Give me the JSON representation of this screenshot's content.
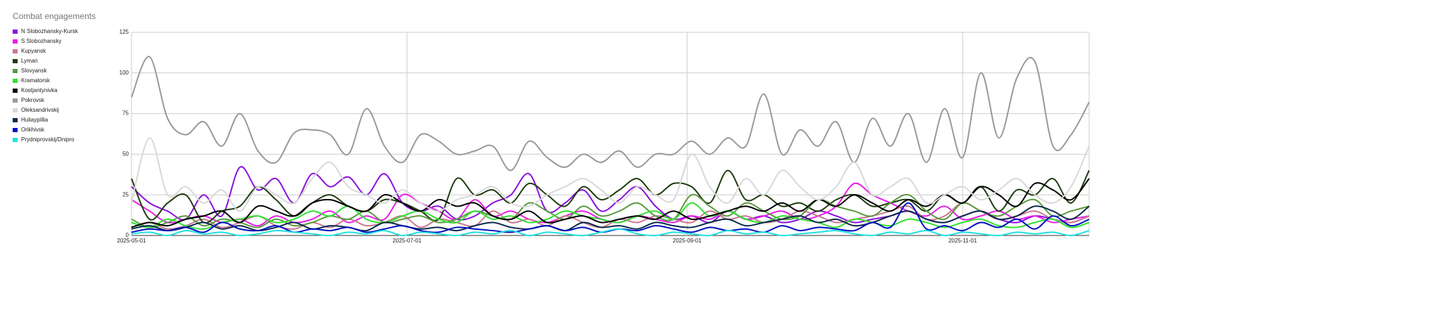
{
  "chart_data": {
    "type": "line",
    "title": "Combat engagements",
    "x": [
      "2025-05-01",
      "2025-05-05",
      "2025-05-09",
      "2025-05-13",
      "2025-05-17",
      "2025-05-21",
      "2025-05-25",
      "2025-05-29",
      "2025-06-02",
      "2025-06-06",
      "2025-06-10",
      "2025-06-14",
      "2025-06-18",
      "2025-06-22",
      "2025-06-26",
      "2025-06-30",
      "2025-07-04",
      "2025-07-08",
      "2025-07-12",
      "2025-07-16",
      "2025-07-20",
      "2025-07-24",
      "2025-07-28",
      "2025-08-01",
      "2025-08-05",
      "2025-08-09",
      "2025-08-13",
      "2025-08-17",
      "2025-08-21",
      "2025-08-25",
      "2025-08-29",
      "2025-09-02",
      "2025-09-06",
      "2025-09-10",
      "2025-09-14",
      "2025-09-18",
      "2025-09-22",
      "2025-09-26",
      "2025-09-30",
      "2025-10-04",
      "2025-10-08",
      "2025-10-12",
      "2025-10-16",
      "2025-10-20",
      "2025-10-24",
      "2025-10-28",
      "2025-11-01",
      "2025-11-05",
      "2025-11-09",
      "2025-11-13",
      "2025-11-17",
      "2025-11-21",
      "2025-11-25",
      "2025-11-29"
    ],
    "xlim": [
      "2025-05-01",
      "2025-11-29"
    ],
    "xticks": [
      "2025-05-01",
      "2025-07-01",
      "2025-09-01",
      "2025-11-01"
    ],
    "ylim": [
      0,
      125
    ],
    "yticks": [
      0,
      25,
      50,
      75,
      100,
      125
    ],
    "grid": true,
    "series": [
      {
        "name": "N Slobozhansky-Kursk",
        "color": "#8a10e0",
        "values": [
          30,
          20,
          15,
          10,
          25,
          12,
          42,
          28,
          35,
          20,
          38,
          30,
          36,
          25,
          38,
          20,
          15,
          18,
          10,
          12,
          20,
          25,
          38,
          15,
          20,
          28,
          15,
          22,
          30,
          18,
          10,
          12,
          8,
          15,
          10,
          12,
          8,
          10,
          15,
          12,
          8,
          10,
          12,
          15,
          10,
          8,
          12,
          15,
          10,
          8,
          12,
          10,
          8,
          12
        ]
      },
      {
        "name": "S Slobozhansky",
        "color": "#e81ee8",
        "values": [
          22,
          15,
          8,
          10,
          12,
          8,
          10,
          6,
          12,
          8,
          10,
          15,
          8,
          12,
          10,
          25,
          20,
          15,
          10,
          22,
          12,
          15,
          10,
          8,
          12,
          15,
          10,
          8,
          12,
          10,
          8,
          12,
          10,
          15,
          10,
          12,
          15,
          10,
          12,
          18,
          32,
          25,
          20,
          15,
          12,
          18,
          10,
          12,
          15,
          10,
          12,
          8,
          10,
          12
        ]
      },
      {
        "name": "Kupyansk",
        "color": "#c87890",
        "values": [
          5,
          8,
          4,
          6,
          10,
          5,
          8,
          12,
          6,
          4,
          8,
          5,
          10,
          6,
          8,
          12,
          5,
          10,
          8,
          6,
          15,
          8,
          10,
          6,
          12,
          8,
          5,
          10,
          8,
          12,
          10,
          8,
          15,
          10,
          12,
          8,
          10,
          15,
          12,
          8,
          10,
          12,
          15,
          18,
          10,
          12,
          20,
          15,
          10,
          12,
          15,
          10,
          8,
          12
        ]
      },
      {
        "name": "Lyman",
        "color": "#1e3c10",
        "values": [
          35,
          10,
          20,
          25,
          8,
          15,
          18,
          30,
          22,
          12,
          20,
          25,
          18,
          15,
          22,
          20,
          15,
          10,
          35,
          25,
          28,
          20,
          32,
          25,
          18,
          30,
          22,
          28,
          35,
          25,
          32,
          30,
          20,
          40,
          22,
          25,
          18,
          20,
          15,
          22,
          25,
          18,
          20,
          22,
          15,
          25,
          20,
          30,
          15,
          28,
          25,
          35,
          20,
          40
        ]
      },
      {
        "name": "Slovyansk",
        "color": "#5a9a40",
        "values": [
          10,
          5,
          8,
          12,
          6,
          10,
          8,
          5,
          10,
          6,
          8,
          12,
          10,
          15,
          8,
          10,
          12,
          8,
          10,
          15,
          12,
          10,
          20,
          15,
          10,
          18,
          12,
          15,
          20,
          12,
          10,
          25,
          18,
          12,
          20,
          15,
          10,
          12,
          22,
          18,
          15,
          12,
          20,
          25,
          15,
          10,
          20,
          15,
          12,
          18,
          22,
          12,
          15,
          18
        ]
      },
      {
        "name": "Kramatorsk",
        "color": "#30e030",
        "values": [
          8,
          5,
          10,
          6,
          4,
          8,
          10,
          12,
          8,
          10,
          15,
          12,
          18,
          10,
          8,
          12,
          15,
          10,
          8,
          15,
          10,
          12,
          8,
          10,
          15,
          12,
          10,
          8,
          12,
          15,
          10,
          20,
          12,
          15,
          10,
          8,
          12,
          10,
          8,
          5,
          10,
          8,
          6,
          10,
          8,
          5,
          8,
          10,
          6,
          5,
          8,
          10,
          5,
          8
        ]
      },
      {
        "name": "Kostjantynivka",
        "color": "#000000",
        "values": [
          5,
          8,
          6,
          10,
          12,
          15,
          8,
          18,
          15,
          12,
          20,
          22,
          18,
          15,
          25,
          20,
          15,
          22,
          18,
          20,
          12,
          10,
          15,
          8,
          10,
          12,
          8,
          10,
          12,
          10,
          15,
          10,
          12,
          15,
          18,
          15,
          20,
          15,
          22,
          18,
          25,
          20,
          15,
          22,
          18,
          25,
          20,
          30,
          25,
          18,
          32,
          28,
          22,
          35
        ]
      },
      {
        "name": "Pokrovsk",
        "color": "#999999",
        "values": [
          85,
          110,
          72,
          62,
          70,
          55,
          75,
          52,
          45,
          63,
          65,
          62,
          50,
          78,
          55,
          45,
          62,
          58,
          50,
          52,
          55,
          40,
          58,
          48,
          42,
          50,
          45,
          52,
          42,
          50,
          50,
          58,
          50,
          60,
          55,
          87,
          50,
          65,
          55,
          70,
          45,
          72,
          55,
          75,
          45,
          78,
          48,
          100,
          60,
          97,
          107,
          55,
          62,
          82
        ]
      },
      {
        "name": "Oleksandrivskij",
        "color": "#d8d8d8",
        "values": [
          20,
          60,
          25,
          30,
          20,
          28,
          15,
          30,
          25,
          20,
          35,
          45,
          30,
          25,
          20,
          28,
          20,
          15,
          22,
          25,
          30,
          20,
          18,
          25,
          30,
          35,
          28,
          20,
          30,
          25,
          22,
          50,
          30,
          20,
          35,
          25,
          40,
          30,
          22,
          30,
          45,
          25,
          30,
          35,
          20,
          25,
          30,
          22,
          28,
          35,
          25,
          20,
          30,
          55
        ]
      },
      {
        "name": "Huliaypillia",
        "color": "#0a2a4a",
        "values": [
          4,
          6,
          3,
          5,
          8,
          4,
          6,
          3,
          5,
          8,
          4,
          6,
          5,
          3,
          8,
          6,
          4,
          5,
          3,
          6,
          8,
          5,
          4,
          6,
          3,
          8,
          5,
          6,
          4,
          8,
          6,
          5,
          8,
          10,
          6,
          8,
          10,
          12,
          8,
          10,
          6,
          8,
          12,
          15,
          10,
          8,
          12,
          15,
          10,
          12,
          18,
          15,
          10,
          18
        ]
      },
      {
        "name": "Orikhivsk",
        "color": "#0010c0",
        "values": [
          2,
          4,
          3,
          5,
          2,
          8,
          4,
          3,
          6,
          2,
          4,
          3,
          5,
          2,
          4,
          6,
          3,
          2,
          5,
          4,
          3,
          2,
          4,
          6,
          3,
          5,
          2,
          4,
          3,
          6,
          4,
          2,
          5,
          3,
          4,
          2,
          6,
          3,
          5,
          4,
          3,
          8,
          5,
          20,
          4,
          6,
          3,
          8,
          5,
          10,
          4,
          12,
          6,
          10
        ]
      },
      {
        "name": "Prydniprovskij/Dnipro",
        "color": "#20e0e0",
        "values": [
          1,
          2,
          0,
          3,
          1,
          2,
          0,
          1,
          3,
          2,
          1,
          0,
          2,
          1,
          3,
          0,
          2,
          1,
          0,
          2,
          1,
          3,
          0,
          2,
          1,
          0,
          2,
          4,
          1,
          0,
          2,
          1,
          0,
          3,
          1,
          2,
          0,
          1,
          2,
          3,
          1,
          0,
          2,
          1,
          3,
          0,
          2,
          1,
          0,
          2,
          1,
          2,
          0,
          3
        ]
      }
    ]
  }
}
